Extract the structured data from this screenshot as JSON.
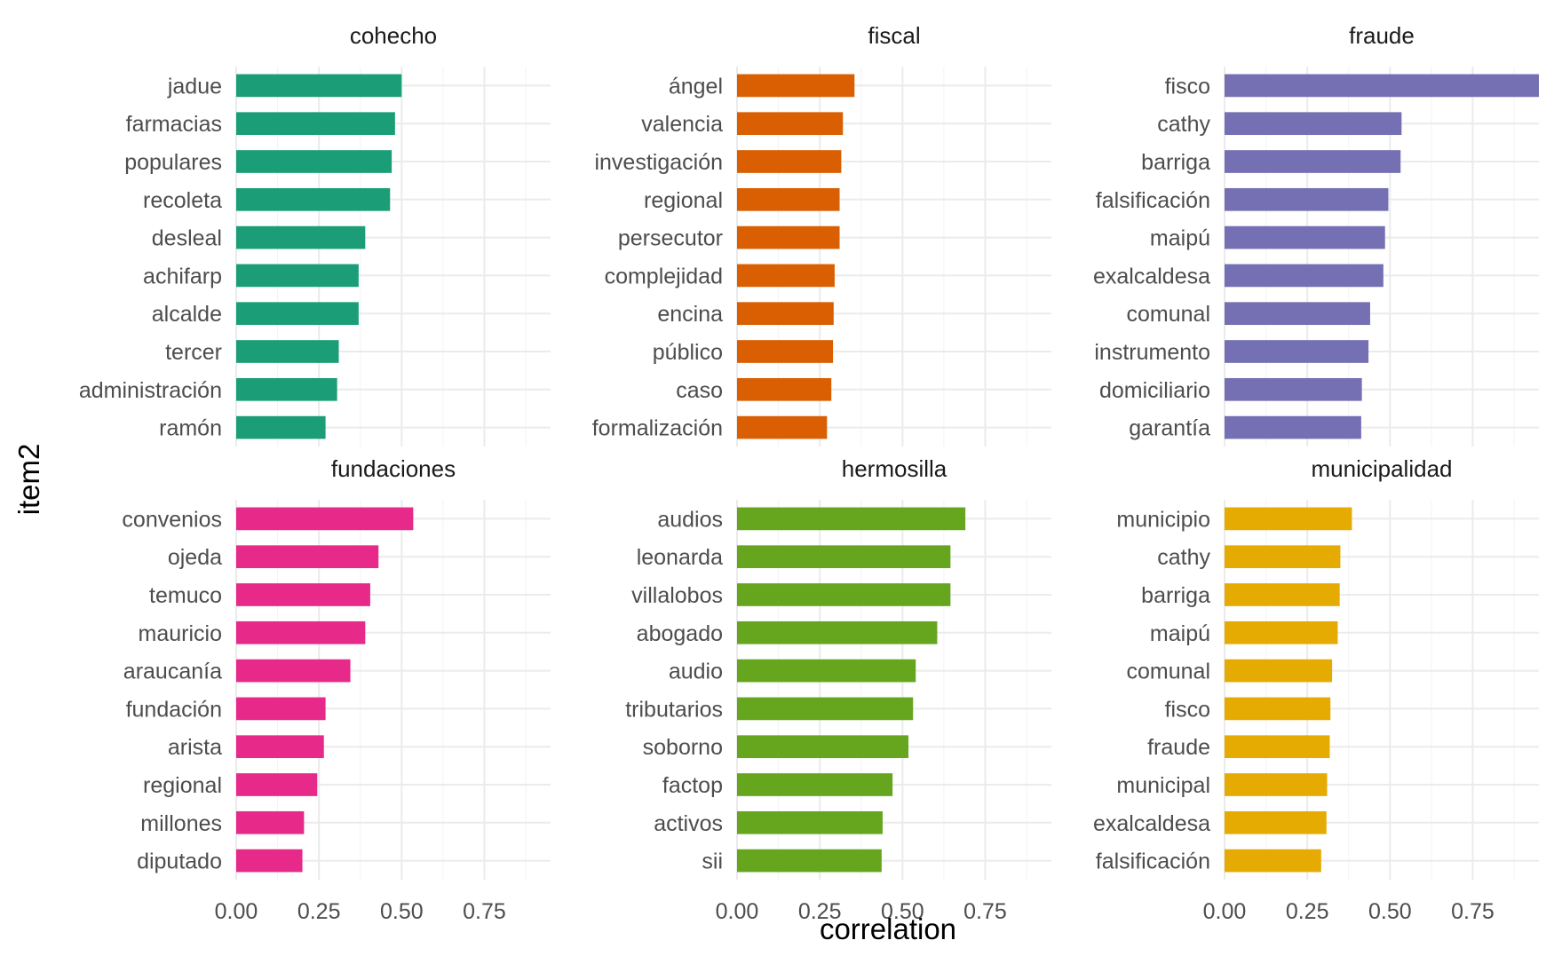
{
  "chart_data": {
    "type": "bar",
    "orientation": "horizontal",
    "faceted": true,
    "xlabel": "correlation",
    "ylabel": "item2",
    "xlim": [
      0,
      0.95
    ],
    "x_ticks": [
      0,
      0.25,
      0.5,
      0.75
    ],
    "x_tick_labels": [
      "0.00",
      "0.25",
      "0.50",
      "0.75"
    ],
    "grid": true,
    "legend": "none",
    "panels": [
      {
        "title": "cohecho",
        "color": "#1b9e77",
        "categories": [
          "jadue",
          "farmacias",
          "populares",
          "recoleta",
          "desleal",
          "achifarp",
          "alcalde",
          "tercer",
          "administración",
          "ramón"
        ],
        "values": [
          0.5,
          0.48,
          0.47,
          0.465,
          0.39,
          0.37,
          0.37,
          0.31,
          0.305,
          0.27
        ]
      },
      {
        "title": "fiscal",
        "color": "#d95f02",
        "categories": [
          "ángel",
          "valencia",
          "investigación",
          "regional",
          "persecutor",
          "complejidad",
          "encina",
          "público",
          "caso",
          "formalización"
        ],
        "values": [
          0.355,
          0.32,
          0.315,
          0.31,
          0.31,
          0.295,
          0.292,
          0.29,
          0.285,
          0.272
        ]
      },
      {
        "title": "fraude",
        "color": "#7570b3",
        "categories": [
          "fisco",
          "cathy",
          "barriga",
          "falsificación",
          "maipú",
          "exalcaldesa",
          "comunal",
          "instrumento",
          "domiciliario",
          "garantía"
        ],
        "values": [
          0.96,
          0.535,
          0.532,
          0.495,
          0.485,
          0.48,
          0.44,
          0.435,
          0.415,
          0.413
        ]
      },
      {
        "title": "fundaciones",
        "color": "#e7298a",
        "categories": [
          "convenios",
          "ojeda",
          "temuco",
          "mauricio",
          "araucanía",
          "fundación",
          "arista",
          "regional",
          "millones",
          "diputado"
        ],
        "values": [
          0.535,
          0.43,
          0.405,
          0.39,
          0.345,
          0.27,
          0.265,
          0.245,
          0.205,
          0.2
        ]
      },
      {
        "title": "hermosilla",
        "color": "#66a61e",
        "categories": [
          "audios",
          "leonarda",
          "villalobos",
          "abogado",
          "audio",
          "tributarios",
          "soborno",
          "factop",
          "activos",
          "sii"
        ],
        "values": [
          0.69,
          0.645,
          0.645,
          0.605,
          0.54,
          0.532,
          0.518,
          0.47,
          0.44,
          0.437
        ]
      },
      {
        "title": "municipalidad",
        "color": "#e6ab02",
        "categories": [
          "municipio",
          "cathy",
          "barriga",
          "maipú",
          "comunal",
          "fisco",
          "fraude",
          "municipal",
          "exalcaldesa",
          "falsificación"
        ],
        "values": [
          0.385,
          0.35,
          0.348,
          0.342,
          0.325,
          0.32,
          0.318,
          0.31,
          0.308,
          0.292
        ]
      }
    ]
  }
}
